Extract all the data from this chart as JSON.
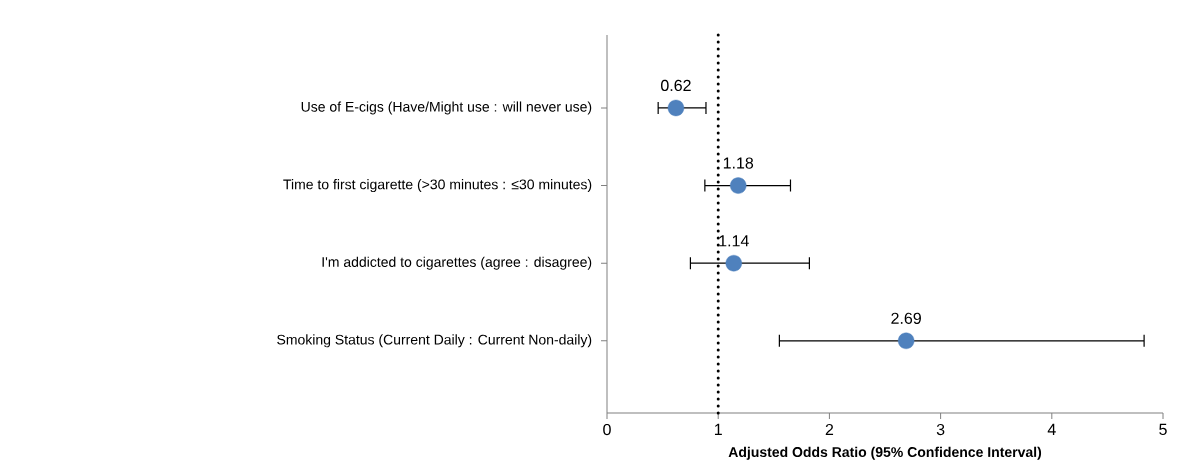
{
  "chart_data": {
    "type": "scatter",
    "orientation": "horizontal",
    "xlabel": "Adjusted Odds Ratio (95% Confidence Interval)",
    "categories": [
      "Use of E-cigs (Have/Might use : will never use)",
      "Time to first cigarette (>30 minutes : ≤30 minutes)",
      "I'm addicted to cigarettes (agree : disagree)",
      "Smoking Status (Current Daily : Current Non-daily)"
    ],
    "values": [
      0.62,
      1.18,
      1.14,
      2.69
    ],
    "errors": [
      [
        0.46,
        0.89
      ],
      [
        0.88,
        1.65
      ],
      [
        0.75,
        1.82
      ],
      [
        1.55,
        4.83
      ]
    ],
    "color": "#4f81bd",
    "data_labels": true,
    "xlim": [
      0,
      5
    ],
    "xticks": [
      0,
      1,
      2,
      3,
      4,
      5
    ],
    "ref_lines": [
      {
        "axis": "x",
        "value": 1,
        "color": "#000000",
        "line_style": "dotted"
      }
    ]
  }
}
